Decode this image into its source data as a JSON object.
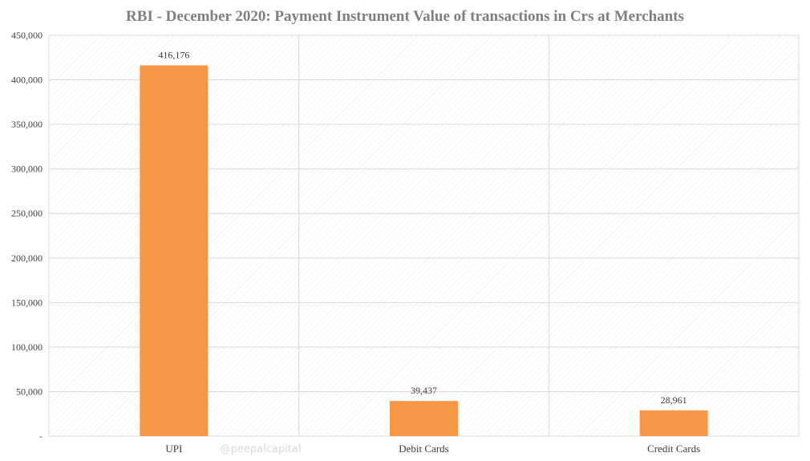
{
  "chart_data": {
    "type": "bar",
    "title": "RBI - December 2020: Payment Instrument Value of transactions in Crs at Merchants",
    "xlabel": "",
    "ylabel": "",
    "categories": [
      "UPI",
      "Debit Cards",
      "Credit Cards"
    ],
    "values": [
      416176,
      39437,
      28961
    ],
    "data_labels": [
      "416,176",
      "39,437",
      "28,961"
    ],
    "ylim": [
      0,
      450000
    ],
    "yticks": [
      0,
      50000,
      100000,
      150000,
      200000,
      250000,
      300000,
      350000,
      400000,
      450000
    ],
    "ytick_labels": [
      "-",
      "50,000",
      "100,000",
      "150,000",
      "200,000",
      "250,000",
      "300,000",
      "350,000",
      "400,000",
      "450,000"
    ],
    "grid": true,
    "legend": "none",
    "bar_color": "#f79646",
    "grid_color": "#d9d9d9"
  },
  "watermark": "@peepalcapital"
}
